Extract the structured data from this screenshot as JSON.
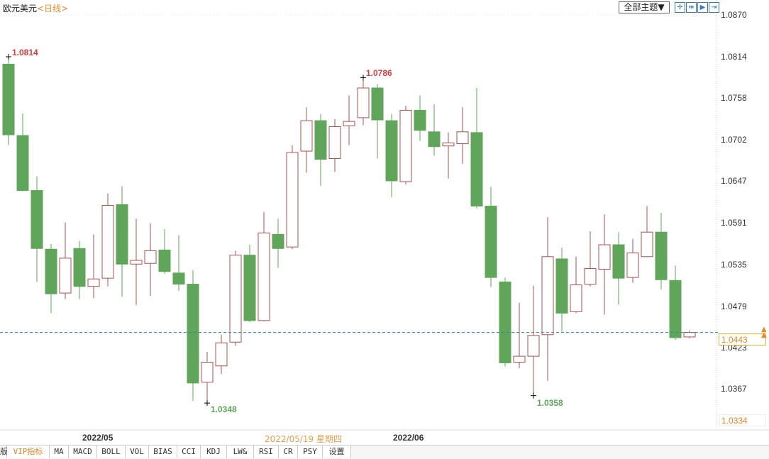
{
  "header": {
    "symbol": "欧元美元",
    "period": "<日线>",
    "theme_button": "全部主题▼",
    "tools": [
      "crosshair-icon",
      "zoom-in-icon",
      "step-forward-icon",
      "go-latest-icon"
    ]
  },
  "axis": {
    "labels": [
      "1.0870",
      "1.0814",
      "1.0758",
      "1.0702",
      "1.0647",
      "1.0591",
      "1.0535",
      "1.0479",
      "1.0423",
      "1.0367"
    ],
    "current_price": "1.0443",
    "min_price": "1.0334"
  },
  "dates": {
    "may": "2022/05",
    "june": "2022/06",
    "crosshair": "2022/05/19 星期四"
  },
  "highlights": {
    "high1": "1.0814",
    "high2": "1.0786",
    "low1": "1.0348",
    "low2": "1.0358"
  },
  "tabs": [
    "版",
    "VIP指标",
    "MA",
    "MACD",
    "BOLL",
    "VOL",
    "BIAS",
    "CCI",
    "KDJ",
    "LW&",
    "RSI",
    "CR",
    "PSY",
    "设置"
  ],
  "colors": {
    "up": "#b05050",
    "down": "#5fa55a",
    "accent": "#e08a2c",
    "price_line": "#3a7f9a"
  },
  "chart_data": {
    "type": "candlestick",
    "ylim": [
      1.0312,
      1.087
    ],
    "ohlc": [
      [
        1.0804,
        1.0814,
        1.0695,
        1.0709
      ],
      [
        1.0708,
        1.0738,
        1.0633,
        1.0634
      ],
      [
        1.0634,
        1.0653,
        1.0511,
        1.0556
      ],
      [
        1.0555,
        1.0562,
        1.0469,
        1.0495
      ],
      [
        1.0496,
        1.0591,
        1.0488,
        1.0543
      ],
      [
        1.0556,
        1.0566,
        1.0488,
        1.0505
      ],
      [
        1.0505,
        1.0575,
        1.0489,
        1.0515
      ],
      [
        1.0516,
        1.063,
        1.0505,
        1.0614
      ],
      [
        1.0615,
        1.064,
        1.0491,
        1.0535
      ],
      [
        1.0535,
        1.0596,
        1.048,
        1.054
      ],
      [
        1.0536,
        1.059,
        1.0492,
        1.0553
      ],
      [
        1.0554,
        1.0582,
        1.0522,
        1.0525
      ],
      [
        1.0523,
        1.0574,
        1.0499,
        1.0508
      ],
      [
        1.0508,
        1.0527,
        1.0351,
        1.0375
      ],
      [
        1.0376,
        1.0417,
        1.0348,
        1.0403
      ],
      [
        1.0398,
        1.044,
        1.0387,
        1.0429
      ],
      [
        1.043,
        1.0553,
        1.0425,
        1.0547
      ],
      [
        1.0547,
        1.0561,
        1.0457,
        1.0459
      ],
      [
        1.0459,
        1.0605,
        1.0458,
        1.0577
      ],
      [
        1.0575,
        1.0596,
        1.053,
        1.0556
      ],
      [
        1.0558,
        1.0695,
        1.0555,
        1.0685
      ],
      [
        1.0687,
        1.0746,
        1.0658,
        1.0728
      ],
      [
        1.0728,
        1.0737,
        1.064,
        1.0676
      ],
      [
        1.0677,
        1.073,
        1.0659,
        1.072
      ],
      [
        1.0721,
        1.0762,
        1.0695,
        1.0727
      ],
      [
        1.0732,
        1.0786,
        1.0722,
        1.0772
      ],
      [
        1.0772,
        1.0777,
        1.0677,
        1.0729
      ],
      [
        1.0728,
        1.0737,
        1.0625,
        1.0647
      ],
      [
        1.0646,
        1.0748,
        1.0642,
        1.0742
      ],
      [
        1.0742,
        1.0762,
        1.0701,
        1.0715
      ],
      [
        1.0713,
        1.075,
        1.0681,
        1.0693
      ],
      [
        1.0694,
        1.0712,
        1.065,
        1.0698
      ],
      [
        1.0697,
        1.0746,
        1.067,
        1.0713
      ],
      [
        1.0712,
        1.0772,
        1.061,
        1.0613
      ],
      [
        1.0613,
        1.0639,
        1.0504,
        1.0517
      ],
      [
        1.0511,
        1.0517,
        1.0397,
        1.0402
      ],
      [
        1.0403,
        1.0483,
        1.0395,
        1.0411
      ],
      [
        1.0411,
        1.0506,
        1.0358,
        1.0439
      ],
      [
        1.044,
        1.0598,
        1.0378,
        1.0545
      ],
      [
        1.0542,
        1.0557,
        1.0444,
        1.0469
      ],
      [
        1.0471,
        1.0545,
        1.0469,
        1.0507
      ],
      [
        1.0508,
        1.0579,
        1.0505,
        1.0529
      ],
      [
        1.0528,
        1.0602,
        1.0467,
        1.0561
      ],
      [
        1.0561,
        1.0578,
        1.048,
        1.0516
      ],
      [
        1.0517,
        1.0569,
        1.051,
        1.055
      ],
      [
        1.0545,
        1.0613,
        1.0545,
        1.0578
      ],
      [
        1.0578,
        1.0604,
        1.0501,
        1.0514
      ],
      [
        1.0513,
        1.0533,
        1.0433,
        1.0436
      ],
      [
        1.0437,
        1.0446,
        1.0435,
        1.0443
      ]
    ]
  }
}
